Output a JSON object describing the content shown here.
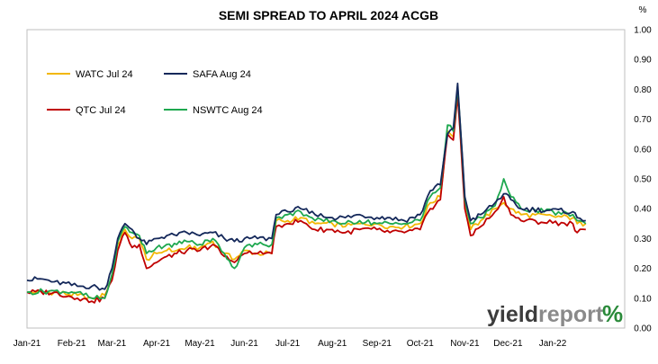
{
  "chart_data": {
    "type": "line",
    "title": "SEMI SPREAD TO APRIL 2024 ACGB",
    "yunit": "%",
    "ylim": [
      0.0,
      1.0
    ],
    "yticks": [
      "0.00",
      "0.10",
      "0.20",
      "0.30",
      "0.40",
      "0.50",
      "0.60",
      "0.70",
      "0.80",
      "0.90",
      "1.00"
    ],
    "xlim": [
      "2021-01-01",
      "2022-02-20"
    ],
    "xticks": [
      {
        "label": "Jan-21",
        "date": "2021-01-01"
      },
      {
        "label": "Feb-21",
        "date": "2021-02-01"
      },
      {
        "label": "Mar-21",
        "date": "2021-03-01"
      },
      {
        "label": "Apr-21",
        "date": "2021-04-01"
      },
      {
        "label": "May-21",
        "date": "2021-05-01"
      },
      {
        "label": "Jun-21",
        "date": "2021-06-01"
      },
      {
        "label": "Jul-21",
        "date": "2021-07-01"
      },
      {
        "label": "Aug-21",
        "date": "2021-08-01"
      },
      {
        "label": "Sep-21",
        "date": "2021-09-01"
      },
      {
        "label": "Oct-21",
        "date": "2021-10-01"
      },
      {
        "label": "Nov-21",
        "date": "2021-11-01"
      },
      {
        "label": "Dec-21",
        "date": "2021-12-01"
      },
      {
        "label": "Jan-22",
        "date": "2022-01-01"
      }
    ],
    "grid": false,
    "legend_position": "top-left",
    "series": [
      {
        "name": "WATC Jul 24",
        "color": "#f2b705",
        "points": [
          [
            "2021-01-01",
            0.12
          ],
          [
            "2021-01-20",
            0.12
          ],
          [
            "2021-02-05",
            0.11
          ],
          [
            "2021-02-15",
            0.1
          ],
          [
            "2021-02-24",
            0.11
          ],
          [
            "2021-03-01",
            0.17
          ],
          [
            "2021-03-05",
            0.28
          ],
          [
            "2021-03-10",
            0.33
          ],
          [
            "2021-03-15",
            0.3
          ],
          [
            "2021-03-20",
            0.3
          ],
          [
            "2021-03-25",
            0.23
          ],
          [
            "2021-04-01",
            0.25
          ],
          [
            "2021-04-08",
            0.26
          ],
          [
            "2021-04-15",
            0.26
          ],
          [
            "2021-04-22",
            0.27
          ],
          [
            "2021-05-01",
            0.27
          ],
          [
            "2021-05-10",
            0.29
          ],
          [
            "2021-05-18",
            0.25
          ],
          [
            "2021-05-25",
            0.23
          ],
          [
            "2021-06-01",
            0.26
          ],
          [
            "2021-06-10",
            0.25
          ],
          [
            "2021-06-20",
            0.25
          ],
          [
            "2021-06-23",
            0.36
          ],
          [
            "2021-07-01",
            0.36
          ],
          [
            "2021-07-10",
            0.37
          ],
          [
            "2021-07-20",
            0.35
          ],
          [
            "2021-08-01",
            0.35
          ],
          [
            "2021-08-10",
            0.34
          ],
          [
            "2021-08-20",
            0.35
          ],
          [
            "2021-09-01",
            0.35
          ],
          [
            "2021-09-10",
            0.34
          ],
          [
            "2021-09-20",
            0.34
          ],
          [
            "2021-10-01",
            0.35
          ],
          [
            "2021-10-08",
            0.42
          ],
          [
            "2021-10-15",
            0.44
          ],
          [
            "2021-10-20",
            0.66
          ],
          [
            "2021-10-24",
            0.64
          ],
          [
            "2021-10-27",
            0.8
          ],
          [
            "2021-11-01",
            0.42
          ],
          [
            "2021-11-05",
            0.33
          ],
          [
            "2021-11-12",
            0.36
          ],
          [
            "2021-11-22",
            0.4
          ],
          [
            "2021-11-28",
            0.42
          ],
          [
            "2021-12-03",
            0.4
          ],
          [
            "2021-12-10",
            0.38
          ],
          [
            "2022-01-15",
            0.37
          ],
          [
            "2022-01-18",
            0.35
          ],
          [
            "2022-01-24",
            0.35
          ]
        ]
      },
      {
        "name": "SAFA Aug 24",
        "color": "#14285a",
        "points": [
          [
            "2021-01-01",
            0.16
          ],
          [
            "2021-01-10",
            0.165
          ],
          [
            "2021-01-20",
            0.155
          ],
          [
            "2021-02-05",
            0.14
          ],
          [
            "2021-02-15",
            0.14
          ],
          [
            "2021-02-24",
            0.13
          ],
          [
            "2021-03-01",
            0.2
          ],
          [
            "2021-03-05",
            0.3
          ],
          [
            "2021-03-10",
            0.35
          ],
          [
            "2021-03-15",
            0.33
          ],
          [
            "2021-03-20",
            0.3
          ],
          [
            "2021-03-25",
            0.28
          ],
          [
            "2021-04-01",
            0.3
          ],
          [
            "2021-04-08",
            0.31
          ],
          [
            "2021-04-15",
            0.31
          ],
          [
            "2021-04-22",
            0.32
          ],
          [
            "2021-05-01",
            0.31
          ],
          [
            "2021-05-10",
            0.32
          ],
          [
            "2021-05-18",
            0.3
          ],
          [
            "2021-05-25",
            0.29
          ],
          [
            "2021-06-01",
            0.3
          ],
          [
            "2021-06-10",
            0.3
          ],
          [
            "2021-06-20",
            0.3
          ],
          [
            "2021-06-23",
            0.38
          ],
          [
            "2021-07-01",
            0.39
          ],
          [
            "2021-07-10",
            0.4
          ],
          [
            "2021-07-20",
            0.38
          ],
          [
            "2021-08-01",
            0.37
          ],
          [
            "2021-08-10",
            0.37
          ],
          [
            "2021-08-20",
            0.38
          ],
          [
            "2021-09-01",
            0.37
          ],
          [
            "2021-09-10",
            0.37
          ],
          [
            "2021-09-20",
            0.36
          ],
          [
            "2021-10-01",
            0.38
          ],
          [
            "2021-10-08",
            0.46
          ],
          [
            "2021-10-15",
            0.48
          ],
          [
            "2021-10-20",
            0.65
          ],
          [
            "2021-10-24",
            0.67
          ],
          [
            "2021-10-27",
            0.82
          ],
          [
            "2021-11-01",
            0.44
          ],
          [
            "2021-11-05",
            0.36
          ],
          [
            "2021-11-12",
            0.38
          ],
          [
            "2021-11-22",
            0.42
          ],
          [
            "2021-11-28",
            0.45
          ],
          [
            "2021-12-03",
            0.43
          ],
          [
            "2021-12-10",
            0.4
          ],
          [
            "2022-01-15",
            0.39
          ],
          [
            "2022-01-18",
            0.37
          ],
          [
            "2022-01-24",
            0.36
          ]
        ]
      },
      {
        "name": "QTC Jul 24",
        "color": "#c00000",
        "points": [
          [
            "2021-01-01",
            0.12
          ],
          [
            "2021-01-20",
            0.12
          ],
          [
            "2021-02-05",
            0.1
          ],
          [
            "2021-02-15",
            0.09
          ],
          [
            "2021-02-24",
            0.1
          ],
          [
            "2021-03-01",
            0.16
          ],
          [
            "2021-03-05",
            0.26
          ],
          [
            "2021-03-10",
            0.32
          ],
          [
            "2021-03-15",
            0.27
          ],
          [
            "2021-03-20",
            0.28
          ],
          [
            "2021-03-25",
            0.2
          ],
          [
            "2021-04-01",
            0.22
          ],
          [
            "2021-04-08",
            0.24
          ],
          [
            "2021-04-15",
            0.25
          ],
          [
            "2021-04-22",
            0.26
          ],
          [
            "2021-05-01",
            0.26
          ],
          [
            "2021-05-10",
            0.28
          ],
          [
            "2021-05-18",
            0.24
          ],
          [
            "2021-05-25",
            0.22
          ],
          [
            "2021-06-01",
            0.25
          ],
          [
            "2021-06-10",
            0.25
          ],
          [
            "2021-06-20",
            0.25
          ],
          [
            "2021-06-23",
            0.34
          ],
          [
            "2021-07-01",
            0.35
          ],
          [
            "2021-07-10",
            0.36
          ],
          [
            "2021-07-20",
            0.33
          ],
          [
            "2021-08-01",
            0.33
          ],
          [
            "2021-08-10",
            0.32
          ],
          [
            "2021-08-20",
            0.33
          ],
          [
            "2021-09-01",
            0.33
          ],
          [
            "2021-09-10",
            0.32
          ],
          [
            "2021-09-20",
            0.32
          ],
          [
            "2021-10-01",
            0.33
          ],
          [
            "2021-10-08",
            0.4
          ],
          [
            "2021-10-15",
            0.43
          ],
          [
            "2021-10-20",
            0.65
          ],
          [
            "2021-10-24",
            0.63
          ],
          [
            "2021-10-27",
            0.78
          ],
          [
            "2021-11-01",
            0.4
          ],
          [
            "2021-11-05",
            0.31
          ],
          [
            "2021-11-12",
            0.34
          ],
          [
            "2021-11-22",
            0.39
          ],
          [
            "2021-11-28",
            0.44
          ],
          [
            "2021-12-03",
            0.38
          ],
          [
            "2021-12-10",
            0.36
          ],
          [
            "2022-01-15",
            0.35
          ],
          [
            "2022-01-18",
            0.32
          ],
          [
            "2022-01-24",
            0.33
          ]
        ]
      },
      {
        "name": "NSWTC Aug 24",
        "color": "#1ea84f",
        "points": [
          [
            "2021-01-01",
            0.12
          ],
          [
            "2021-01-20",
            0.125
          ],
          [
            "2021-02-05",
            0.12
          ],
          [
            "2021-02-15",
            0.1
          ],
          [
            "2021-02-24",
            0.1
          ],
          [
            "2021-03-01",
            0.18
          ],
          [
            "2021-03-05",
            0.29
          ],
          [
            "2021-03-10",
            0.34
          ],
          [
            "2021-03-15",
            0.32
          ],
          [
            "2021-03-20",
            0.31
          ],
          [
            "2021-03-25",
            0.25
          ],
          [
            "2021-04-01",
            0.27
          ],
          [
            "2021-04-08",
            0.28
          ],
          [
            "2021-04-15",
            0.28
          ],
          [
            "2021-04-22",
            0.29
          ],
          [
            "2021-05-01",
            0.28
          ],
          [
            "2021-05-10",
            0.3
          ],
          [
            "2021-05-18",
            0.25
          ],
          [
            "2021-05-25",
            0.2
          ],
          [
            "2021-06-01",
            0.27
          ],
          [
            "2021-06-10",
            0.28
          ],
          [
            "2021-06-20",
            0.28
          ],
          [
            "2021-06-23",
            0.37
          ],
          [
            "2021-07-01",
            0.38
          ],
          [
            "2021-07-10",
            0.39
          ],
          [
            "2021-07-20",
            0.36
          ],
          [
            "2021-08-01",
            0.36
          ],
          [
            "2021-08-10",
            0.35
          ],
          [
            "2021-08-20",
            0.36
          ],
          [
            "2021-09-01",
            0.35
          ],
          [
            "2021-09-10",
            0.35
          ],
          [
            "2021-09-20",
            0.35
          ],
          [
            "2021-10-01",
            0.36
          ],
          [
            "2021-10-08",
            0.44
          ],
          [
            "2021-10-15",
            0.47
          ],
          [
            "2021-10-20",
            0.68
          ],
          [
            "2021-10-24",
            0.66
          ],
          [
            "2021-10-27",
            0.81
          ],
          [
            "2021-11-01",
            0.43
          ],
          [
            "2021-11-05",
            0.35
          ],
          [
            "2021-11-12",
            0.37
          ],
          [
            "2021-11-22",
            0.41
          ],
          [
            "2021-11-28",
            0.5
          ],
          [
            "2021-12-03",
            0.44
          ],
          [
            "2021-12-10",
            0.4
          ],
          [
            "2022-01-15",
            0.38
          ],
          [
            "2022-01-18",
            0.36
          ],
          [
            "2022-01-24",
            0.35
          ]
        ]
      }
    ]
  },
  "watermark": {
    "text_main": "yieldreport",
    "text_pct": "%",
    "color_dark": "#3c3c3c",
    "color_light": "#8a8a8a",
    "color_green": "#2a8a3a",
    "color_red": "#c00000"
  }
}
